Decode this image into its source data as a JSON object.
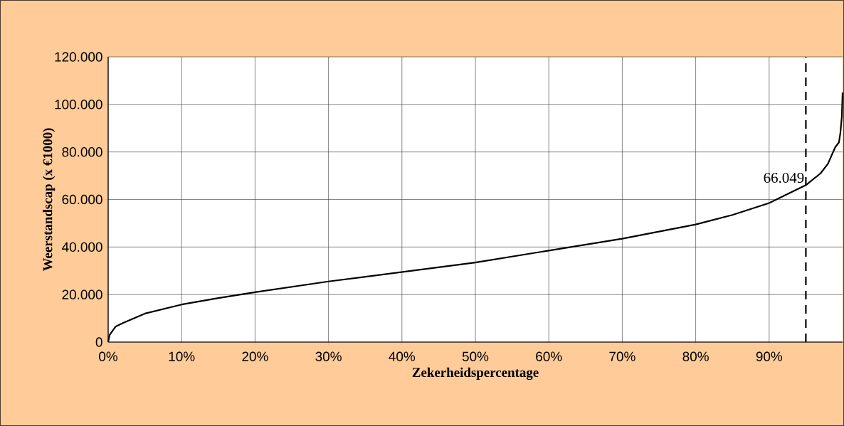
{
  "chart_data": {
    "type": "line",
    "xlabel": "Zekerheidspercentage",
    "ylabel": "Weerstandscap (x €1000)",
    "x": [
      0,
      0.002,
      0.01,
      0.02,
      0.05,
      0.1,
      0.15,
      0.2,
      0.3,
      0.4,
      0.5,
      0.6,
      0.7,
      0.8,
      0.85,
      0.9,
      0.95,
      0.97,
      0.98,
      0.99,
      0.995,
      0.997,
      0.999,
      1.0
    ],
    "series": [
      {
        "color": "#000000",
        "values": [
          0,
          3000,
          6500,
          8000,
          12000,
          15800,
          18500,
          21000,
          25500,
          29500,
          33500,
          38500,
          43500,
          49500,
          53500,
          58500,
          66049,
          71000,
          75000,
          82000,
          84000,
          88000,
          95000,
          105000
        ]
      }
    ],
    "xlim": [
      0,
      1
    ],
    "ylim": [
      0,
      120000
    ],
    "xticks": [
      {
        "value": 0,
        "label": "0%"
      },
      {
        "value": 0.1,
        "label": "10%"
      },
      {
        "value": 0.2,
        "label": "20%"
      },
      {
        "value": 0.3,
        "label": "30%"
      },
      {
        "value": 0.4,
        "label": "40%"
      },
      {
        "value": 0.5,
        "label": "50%"
      },
      {
        "value": 0.6,
        "label": "60%"
      },
      {
        "value": 0.7,
        "label": "70%"
      },
      {
        "value": 0.8,
        "label": "80%"
      },
      {
        "value": 0.9,
        "label": "90%"
      }
    ],
    "yticks": [
      {
        "value": 0,
        "label": "0"
      },
      {
        "value": 20000,
        "label": "20.000"
      },
      {
        "value": 40000,
        "label": "40.000"
      },
      {
        "value": 60000,
        "label": "60.000"
      },
      {
        "value": 80000,
        "label": "80.000"
      },
      {
        "value": 100000,
        "label": "100.000"
      },
      {
        "value": 120000,
        "label": "120.000"
      }
    ],
    "ref_lines": [
      {
        "axis": "x",
        "value": 0.95,
        "color": "#000000",
        "line_style": "dashed"
      }
    ],
    "annotations": [
      {
        "text": "66.049",
        "x": 0.95,
        "y": 66049
      }
    ],
    "grid": true,
    "marker": "none",
    "line_style": "solid"
  }
}
